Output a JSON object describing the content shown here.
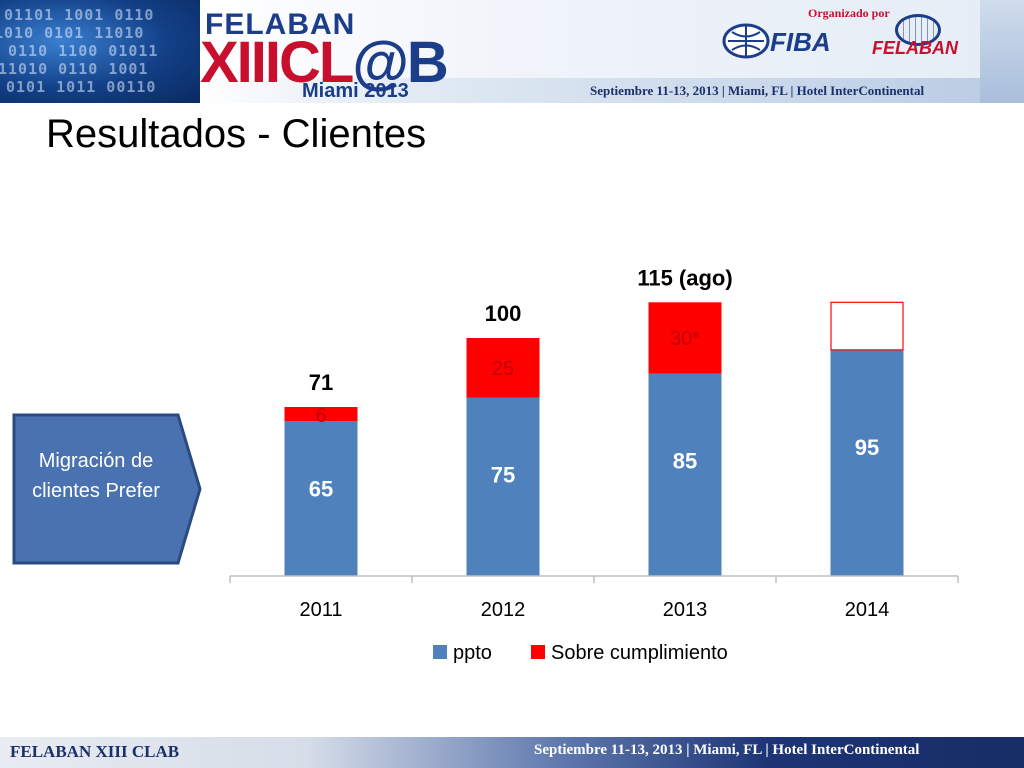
{
  "header": {
    "event_name_top": "FELABAN",
    "event_name_main_red": "XIIICL",
    "event_name_main_blue": "@B",
    "event_city": "Miami 2013",
    "organized_by": "Organizado por",
    "partner1": "FIBA",
    "partner2": "FELABAN",
    "info": "Septiembre 11-13, 2013  |  Miami, FL  |  Hotel InterContinental"
  },
  "slide": {
    "title": "Resultados - Clientes"
  },
  "callout": {
    "text": "Migración de clientes Prefer"
  },
  "footer": {
    "left": "FELABAN XIII CLAB",
    "right": "Septiembre 11-13, 2013  |  Miami, FL  |  Hotel InterContinental"
  },
  "colors": {
    "ppto": "#4f81bd",
    "sobre": "#ff0000",
    "axis": "#bfbfbf",
    "callout_fill": "#4a72b0",
    "callout_stroke": "#2b4a7e"
  },
  "chart_data": {
    "type": "bar",
    "stacked": true,
    "categories": [
      "2011",
      "2012",
      "2013",
      "2014"
    ],
    "series": [
      {
        "name": "ppto",
        "values": [
          65,
          75,
          85,
          95
        ],
        "labels": [
          "65",
          "75",
          "85",
          "95"
        ]
      },
      {
        "name": "Sobre cumplimiento",
        "values": [
          6,
          25,
          30,
          20
        ],
        "labels": [
          "6",
          "25",
          "30*",
          ""
        ],
        "outline_only": [
          false,
          false,
          false,
          true
        ]
      }
    ],
    "total_labels": [
      "71",
      "100",
      "115 (ago)",
      ""
    ],
    "ylim": [
      0,
      130
    ],
    "grid": false,
    "legend": "bottom"
  }
}
